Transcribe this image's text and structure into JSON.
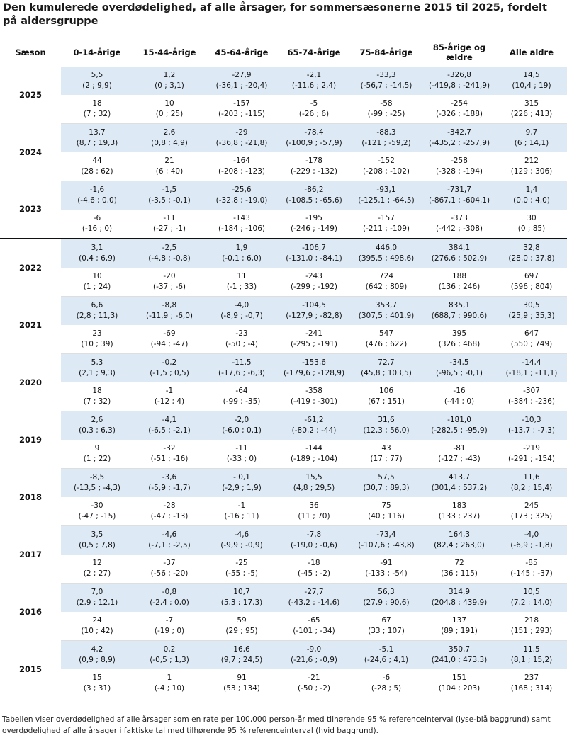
{
  "title": "Den kumulerede overdødelighed, af alle årsager, for sommersæsonerne 2015 til 2025, fordelt på aldersgruppe",
  "columns": [
    "Sæson",
    "0-14-årige",
    "15-44-årige",
    "45-64-årige",
    "65-74-årige",
    "75-84-årige",
    "85-årige og ældre",
    "Alle aldre"
  ],
  "seasons": [
    {
      "season": "2025",
      "rate": [
        [
          "5,5",
          "(2 ; 9,9)"
        ],
        [
          "1,2",
          "(0 ; 3,1)"
        ],
        [
          "-27,9",
          "(-36,1 ; -20,4)"
        ],
        [
          "-2,1",
          "(-11,6 ; 2,4)"
        ],
        [
          "-33,3",
          "(-56,7 ; -14,5)"
        ],
        [
          "-326,8",
          "(-419,8 ; -241,9)"
        ],
        [
          "14,5",
          "(10,4 ; 19)"
        ]
      ],
      "count": [
        [
          "18",
          "(7 ; 32)"
        ],
        [
          "10",
          "(0 ; 25)"
        ],
        [
          "-157",
          "(-203 ; -115)"
        ],
        [
          "-5",
          "(-26 ; 6)"
        ],
        [
          "-58",
          "(-99 ; -25)"
        ],
        [
          "-254",
          "(-326 ; -188)"
        ],
        [
          "315",
          "(226 ; 413)"
        ]
      ]
    },
    {
      "season": "2024",
      "rate": [
        [
          "13,7",
          "(8,7 ; 19,3)"
        ],
        [
          "2,6",
          "(0,8 ; 4,9)"
        ],
        [
          "-29",
          "(-36,8 ; -21,8)"
        ],
        [
          "-78,4",
          "(-100,9 ; -57,9)"
        ],
        [
          "-88,3",
          "(-121 ; -59,2)"
        ],
        [
          "-342,7",
          "(-435,2 ; -257,9)"
        ],
        [
          "9,7",
          "(6 ; 14,1)"
        ]
      ],
      "count": [
        [
          "44",
          "(28 ; 62)"
        ],
        [
          "21",
          "(6 ; 40)"
        ],
        [
          "-164",
          "(-208 ; -123)"
        ],
        [
          "-178",
          "(-229 ; -132)"
        ],
        [
          "-152",
          "(-208 ; -102)"
        ],
        [
          "-258",
          "(-328 ; -194)"
        ],
        [
          "212",
          "(129 ; 306)"
        ]
      ]
    },
    {
      "season": "2023",
      "rate": [
        [
          "-1,6",
          "(-4,6 ; 0,0)"
        ],
        [
          "-1,5",
          "(-3,5 ; -0,1)"
        ],
        [
          "-25,6",
          "(-32,8 ; -19,0)"
        ],
        [
          "-86,2",
          "(-108,5 ; -65,6)"
        ],
        [
          "-93,1",
          "(-125,1 ; -64,5)"
        ],
        [
          "-731,7",
          "(-867,1 ; -604,1)"
        ],
        [
          "1,4",
          "(0,0 ; 4,0)"
        ]
      ],
      "count": [
        [
          "-6",
          "(-16 ; 0)"
        ],
        [
          "-11",
          "(-27 ; -1)"
        ],
        [
          "-143",
          "(-184 ; -106)"
        ],
        [
          "-195",
          "(-246 ; -149)"
        ],
        [
          "-157",
          "(-211 ; -109)"
        ],
        [
          "-373",
          "(-442 ; -308)"
        ],
        [
          "30",
          "(0 ; 85)"
        ]
      ]
    },
    {
      "season": "2022",
      "rate": [
        [
          "3,1",
          "(0,4 ; 6,9)"
        ],
        [
          "-2,5",
          "(-4,8 ; -0,8)"
        ],
        [
          "1,9",
          "(-0,1 ; 6,0)"
        ],
        [
          "-106,7",
          "(-131,0 ; -84,1)"
        ],
        [
          "446,0",
          "(395,5 ; 498,6)"
        ],
        [
          "384,1",
          "(276,6 ; 502,9)"
        ],
        [
          "32,8",
          "(28,0 ; 37,8)"
        ]
      ],
      "count": [
        [
          "10",
          "(1 ; 24)"
        ],
        [
          "-20",
          "(-37 ; -6)"
        ],
        [
          "11",
          "(-1 ; 33)"
        ],
        [
          "-243",
          "(-299 ; -192)"
        ],
        [
          "724",
          "(642 ; 809)"
        ],
        [
          "188",
          "(136 ; 246)"
        ],
        [
          "697",
          "(596 ; 804)"
        ]
      ]
    },
    {
      "season": "2021",
      "rate": [
        [
          "6,6",
          "(2,8 ; 11,3)"
        ],
        [
          "-8,8",
          "(-11,9 ; -6,0)"
        ],
        [
          "-4,0",
          "(-8,9 ; -0,7)"
        ],
        [
          "-104,5",
          "(-127,9 ; -82,8)"
        ],
        [
          "353,7",
          "(307,5 ; 401,9)"
        ],
        [
          "835,1",
          "(688,7 ; 990,6)"
        ],
        [
          "30,5",
          "(25,9 ; 35,3)"
        ]
      ],
      "count": [
        [
          "23",
          "(10 ; 39)"
        ],
        [
          "-69",
          "(-94 ; -47)"
        ],
        [
          "-23",
          "(-50 ; -4)"
        ],
        [
          "-241",
          "(-295 ; -191)"
        ],
        [
          "547",
          "(476 ; 622)"
        ],
        [
          "395",
          "(326 ; 468)"
        ],
        [
          "647",
          "(550 ; 749)"
        ]
      ]
    },
    {
      "season": "2020",
      "rate": [
        [
          "5,3",
          "(2,1 ; 9,3)"
        ],
        [
          "-0,2",
          "(-1,5 ; 0,5)"
        ],
        [
          "-11,5",
          "(-17,6 ; -6,3)"
        ],
        [
          "-153,6",
          "(-179,6 ; -128,9)"
        ],
        [
          "72,7",
          "(45,8 ; 103,5)"
        ],
        [
          "-34,5",
          "(-96,5 ; -0,1)"
        ],
        [
          "-14,4",
          "(-18,1 ; -11,1)"
        ]
      ],
      "count": [
        [
          "18",
          "(7 ; 32)"
        ],
        [
          "-1",
          "(-12 ; 4)"
        ],
        [
          "-64",
          "(-99 ; -35)"
        ],
        [
          "-358",
          "(-419 ; -301)"
        ],
        [
          "106",
          "(67 ; 151)"
        ],
        [
          "-16",
          "(-44 ; 0)"
        ],
        [
          "-307",
          "(-384 ; -236)"
        ]
      ]
    },
    {
      "season": "2019",
      "rate": [
        [
          "2,6",
          "(0,3 ; 6,3)"
        ],
        [
          "-4,1",
          "(-6,5 ; -2,1)"
        ],
        [
          "-2,0",
          "(-6,0 ; 0,1)"
        ],
        [
          "-61,2",
          "(-80,2 ; -44)"
        ],
        [
          "31,6",
          "(12,3 ; 56,0)"
        ],
        [
          "-181,0",
          "(-282,5 ; -95,9)"
        ],
        [
          "-10,3",
          "(-13,7 ; -7,3)"
        ]
      ],
      "count": [
        [
          "9",
          "(1 ; 22)"
        ],
        [
          "-32",
          "(-51 ; -16)"
        ],
        [
          "-11",
          "(-33 ; 0)"
        ],
        [
          "-144",
          "(-189 ; -104)"
        ],
        [
          "43",
          "(17 ; 77)"
        ],
        [
          "-81",
          "(-127 ; -43)"
        ],
        [
          "-219",
          "(-291 ; -154)"
        ]
      ]
    },
    {
      "season": "2018",
      "rate": [
        [
          "-8,5",
          "(-13,5 ; -4,3)"
        ],
        [
          "-3,6",
          "(-5,9 ; -1,7)"
        ],
        [
          "- 0,1",
          "(-2,9 ; 1,9)"
        ],
        [
          "15,5",
          "(4,8 ; 29,5)"
        ],
        [
          "57,5",
          "(30,7 ; 89,3)"
        ],
        [
          "413,7",
          "(301,4 ; 537,2)"
        ],
        [
          "11,6",
          "(8,2 ; 15,4)"
        ]
      ],
      "count": [
        [
          "-30",
          "(-47 ; -15)"
        ],
        [
          "-28",
          "(-47 ; -13)"
        ],
        [
          "-1",
          "(-16 ; 11)"
        ],
        [
          "36",
          "(11 ; 70)"
        ],
        [
          "75",
          "(40 ; 116)"
        ],
        [
          "183",
          "(133 ; 237)"
        ],
        [
          "245",
          "(173 ; 325)"
        ]
      ]
    },
    {
      "season": "2017",
      "rate": [
        [
          "3,5",
          "(0,5 ; 7,8)"
        ],
        [
          "-4,6",
          "(-7,1 ; -2,5)"
        ],
        [
          "-4,6",
          "(-9,9 ; -0,9)"
        ],
        [
          "-7,8",
          "(-19,0 ; -0,6)"
        ],
        [
          "-73,4",
          "(-107,6 ; -43,8)"
        ],
        [
          "164,3",
          "(82,4 ; 263,0)"
        ],
        [
          "-4,0",
          "(-6,9 ; -1,8)"
        ]
      ],
      "count": [
        [
          "12",
          "(2 ; 27)"
        ],
        [
          "-37",
          "(-56 ; -20)"
        ],
        [
          "-25",
          "(-55 ; -5)"
        ],
        [
          "-18",
          "(-45 ; -2)"
        ],
        [
          "-91",
          "(-133 ; -54)"
        ],
        [
          "72",
          "(36 ; 115)"
        ],
        [
          "-85",
          "(-145 ; -37)"
        ]
      ]
    },
    {
      "season": "2016",
      "rate": [
        [
          "7,0",
          "(2,9 ; 12,1)"
        ],
        [
          "-0,8",
          "(-2,4 ; 0,0)"
        ],
        [
          "10,7",
          "(5,3 ; 17,3)"
        ],
        [
          "-27,7",
          "(-43,2 ; -14,6)"
        ],
        [
          "56,3",
          "(27,9 ; 90,6)"
        ],
        [
          "314,9",
          "(204,8 ; 439,9)"
        ],
        [
          "10,5",
          "(7,2 ; 14,0)"
        ]
      ],
      "count": [
        [
          "24",
          "(10 ; 42)"
        ],
        [
          "-7",
          "(-19 ; 0)"
        ],
        [
          "59",
          "(29 ; 95)"
        ],
        [
          "-65",
          "(-101 ; -34)"
        ],
        [
          "67",
          "(33 ; 107)"
        ],
        [
          "137",
          "(89 ; 191)"
        ],
        [
          "218",
          "(151 ; 293)"
        ]
      ]
    },
    {
      "season": "2015",
      "rate": [
        [
          "4,2",
          "(0,9 ; 8,9)"
        ],
        [
          "0,2",
          "(-0,5 ; 1,3)"
        ],
        [
          "16,6",
          "(9,7 ; 24,5)"
        ],
        [
          "-9,0",
          "(-21,6 ; -0,9)"
        ],
        [
          "-5,1",
          "(-24,6 ; 4,1)"
        ],
        [
          "350,7",
          "(241,0 ; 473,3)"
        ],
        [
          "11,5",
          "(8,1 ; 15,2)"
        ]
      ],
      "count": [
        [
          "15",
          "(3 ; 31)"
        ],
        [
          "1",
          "(-4 ; 10)"
        ],
        [
          "91",
          "(53 ; 134)"
        ],
        [
          "-21",
          "(-50 ; -2)"
        ],
        [
          "-6",
          "(-28 ; 5)"
        ],
        [
          "151",
          "(104 ; 203)"
        ],
        [
          "237",
          "(168 ; 314)"
        ]
      ]
    }
  ],
  "footnote": "Tabellen viser overdødelighed af alle årsager som en rate per 100,000 person-år med tilhørende 95 % referenceinterval (lyse-blå baggrund) samt overdødelighed af alle årsager i faktiske tal med tilhørende 95 % referenceinterval (hvid baggrund).",
  "colors": {
    "rate_background": "#dde9f5",
    "count_background": "#ffffff",
    "separator": "#111111"
  }
}
